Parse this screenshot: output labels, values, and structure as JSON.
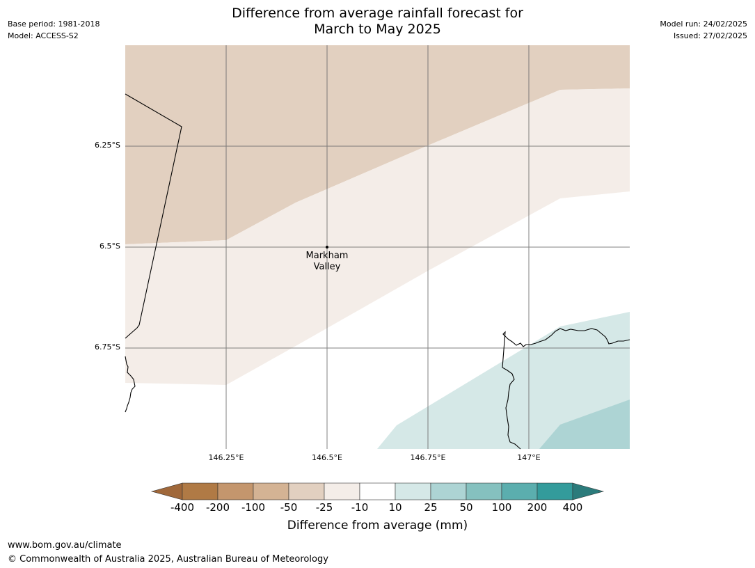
{
  "header": {
    "title_line1": "Difference from average rainfall forecast for",
    "title_line2": "March to May 2025",
    "base_period": "Base period: 1981-2018",
    "model": "Model: ACCESS-S2",
    "model_run": "Model run: 24/02/2025",
    "issued": "Issued: 27/02/2025"
  },
  "map": {
    "latitude_labels": [
      "6.25°S",
      "6.5°S",
      "6.75°S"
    ],
    "longitude_labels": [
      "146.25°E",
      "146.5°E",
      "146.75°E",
      "147°E"
    ],
    "place": {
      "name_line1": "Markham",
      "name_line2": "Valley",
      "lon": 146.5,
      "lat": -6.5
    },
    "regions": [
      {
        "category": "-50 to -25",
        "color": "#e2d0c0"
      },
      {
        "category": "-25 to -10",
        "color": "#f4ede8"
      },
      {
        "category": "-10 to 10",
        "color": "#ffffff"
      },
      {
        "category": "10 to 25",
        "color": "#d5e8e7"
      },
      {
        "category": "25 to 50",
        "color": "#add4d4"
      }
    ]
  },
  "colorbar": {
    "title": "Difference from average (mm)",
    "ticks": [
      "-400",
      "-200",
      "-100",
      "-50",
      "-25",
      "-10",
      "10",
      "25",
      "50",
      "100",
      "200",
      "400"
    ],
    "colors": [
      "#a0683a",
      "#b07a45",
      "#c4966d",
      "#d4b394",
      "#e2d0c0",
      "#f4ede8",
      "#ffffff",
      "#d5e8e7",
      "#add4d4",
      "#85c1bf",
      "#5baeae",
      "#339b9b",
      "#2b7b7b"
    ]
  },
  "footer": {
    "url": "www.bom.gov.au/climate",
    "copyright": "© Commonwealth of Australia 2025, Australian Bureau of Meteorology"
  }
}
